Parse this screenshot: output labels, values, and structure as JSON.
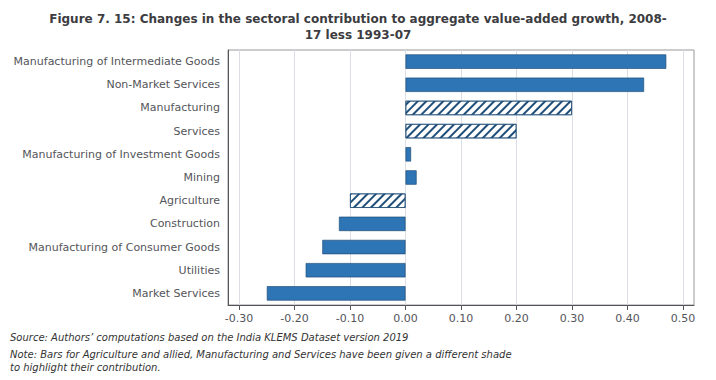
{
  "chart_data": {
    "type": "bar",
    "orientation": "horizontal",
    "title": "Figure 7. 15: Changes in the sectoral contribution to aggregate value-added growth, 2008-\n17 less 1993-07",
    "categories": [
      "Manufacturing of Intermediate Goods",
      "Non-Market Services",
      "Manufacturing",
      "Services",
      "Manufacturing of Investment Goods",
      "Mining",
      "Agriculture",
      "Construction",
      "Manufacturing of Consumer Goods",
      "Utilities",
      "Market Services"
    ],
    "values": [
      0.47,
      0.43,
      0.3,
      0.2,
      0.01,
      0.02,
      -0.1,
      -0.12,
      -0.15,
      -0.18,
      -0.25
    ],
    "colors": [
      "#2E75B6",
      "#2E75B6",
      "#FFFFFF",
      "#FFFFFF",
      "#2E75B6",
      "#2E75B6",
      "#FFFFFF",
      "#2E75B6",
      "#2E75B6",
      "#2E75B6",
      "#2E75B6"
    ],
    "xlim": [
      -0.32,
      0.52
    ],
    "xticks": [
      {
        "value": -0.3,
        "label": "-0.30"
      },
      {
        "value": -0.2,
        "label": "-0.20"
      },
      {
        "value": -0.1,
        "label": "-0.10"
      },
      {
        "value": 0,
        "label": "0.00"
      },
      {
        "value": 0.1,
        "label": "0.10"
      },
      {
        "value": 0.2,
        "label": "0.20"
      },
      {
        "value": 0.3,
        "label": "0.30"
      },
      {
        "value": 0.4,
        "label": "0.40"
      },
      {
        "value": 0.5,
        "label": "0.50"
      }
    ],
    "grid": true,
    "annotations": [
      "Source: Authors’ computations based on the India KLEMS Dataset version 2019",
      "Note: Bars for Agriculture and allied, Manufacturing and Services have been given a different shade\nto highlight their contribution."
    ]
  }
}
